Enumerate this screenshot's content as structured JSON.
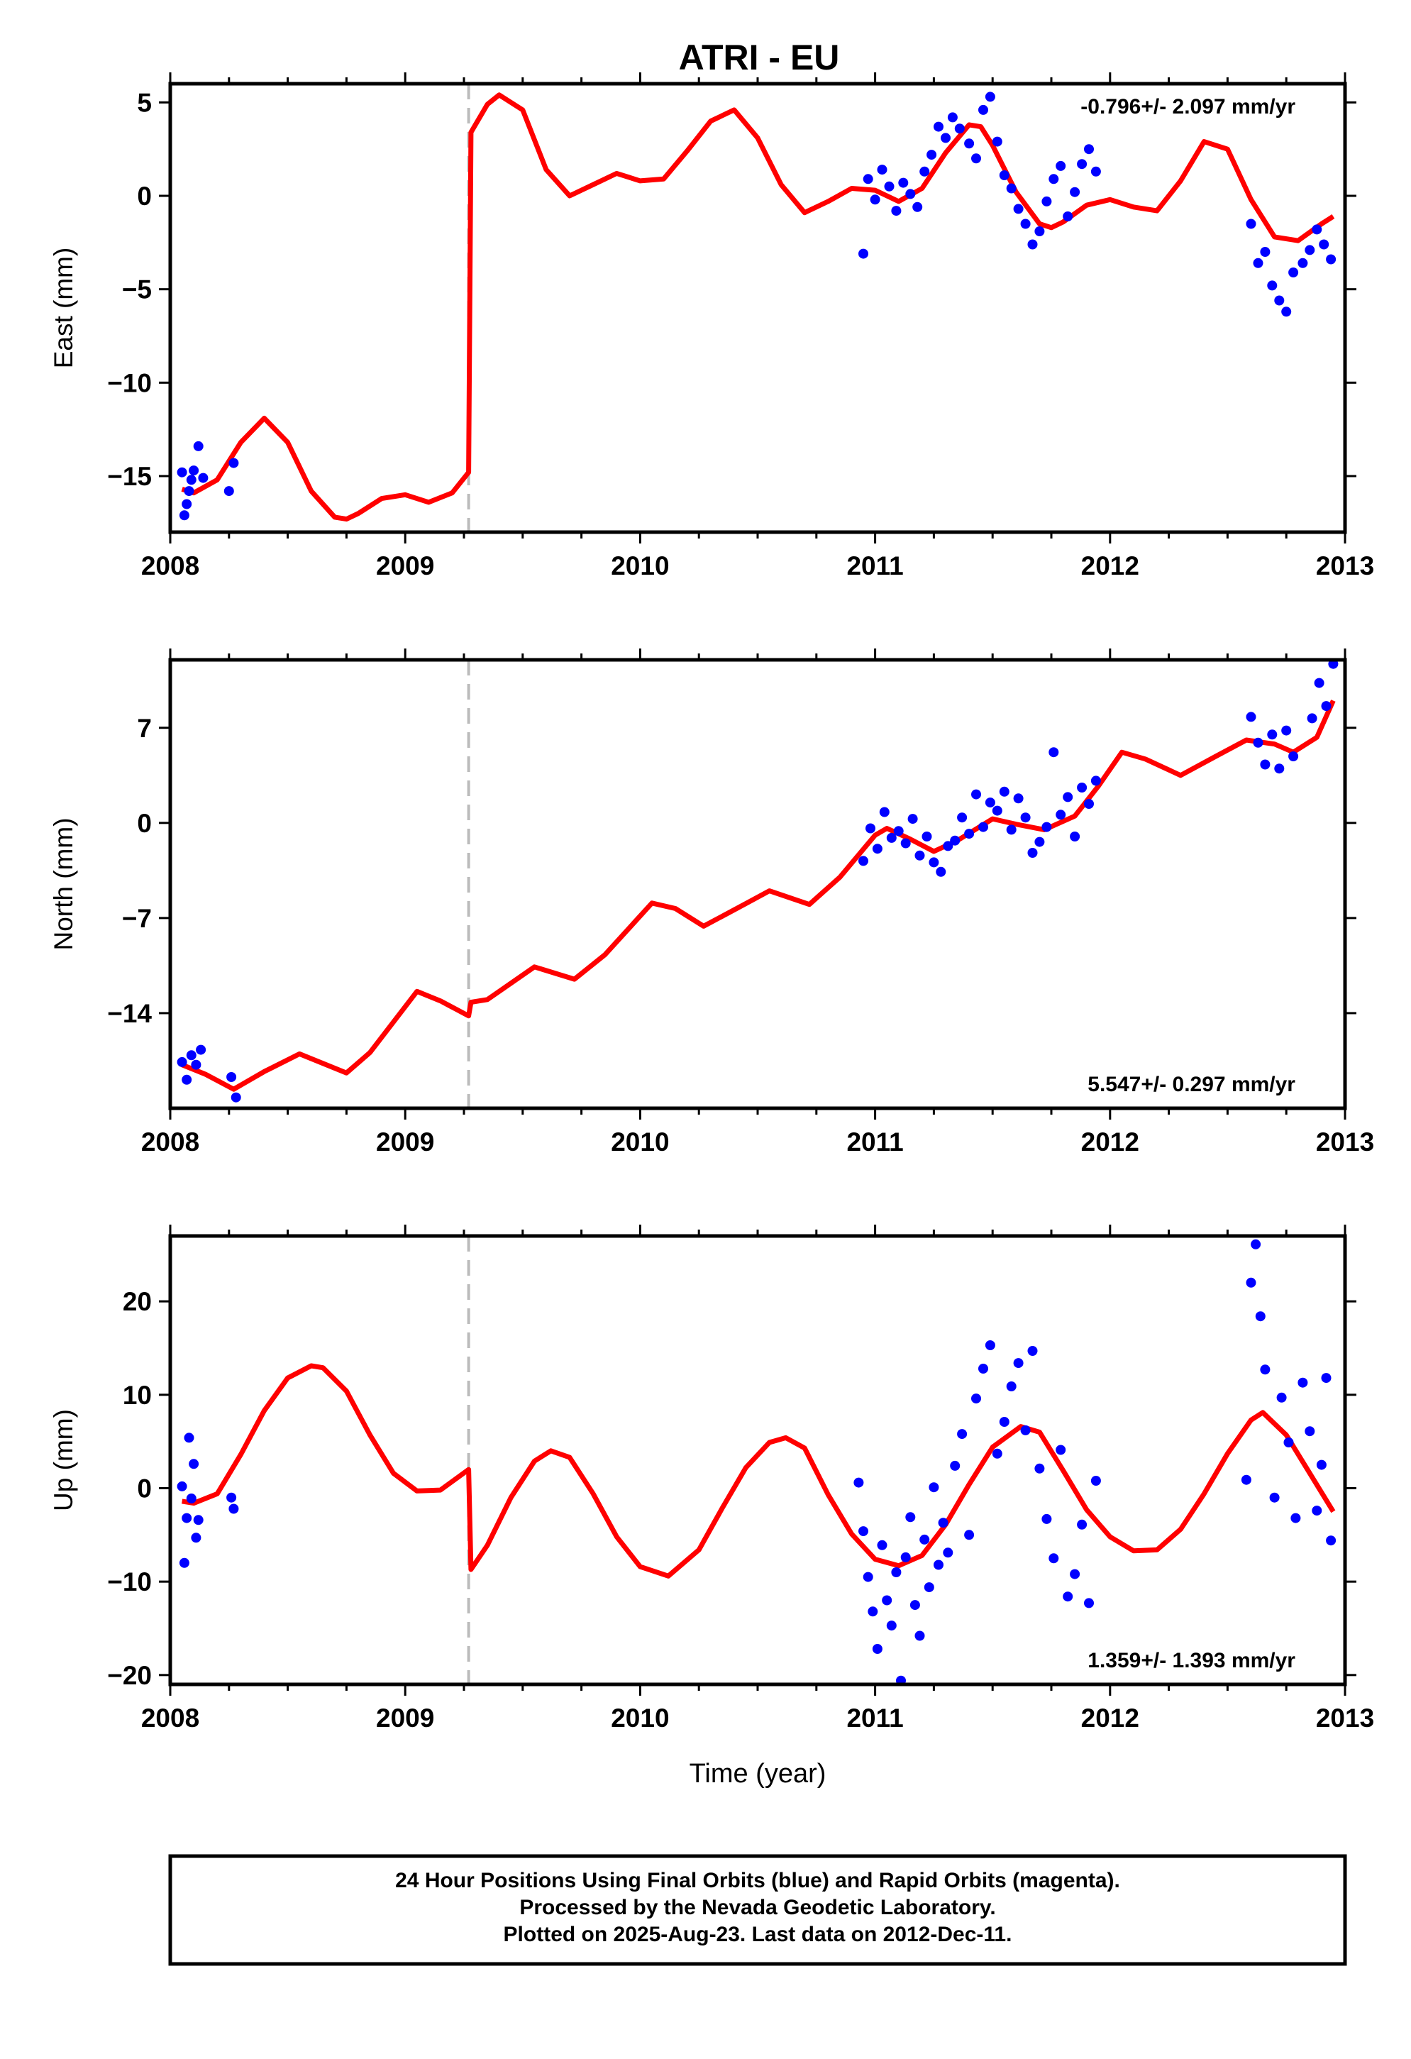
{
  "chart_data": [
    {
      "type": "scatter",
      "title": "ATRI - EU",
      "ylabel": "East (mm)",
      "xlabel": "",
      "xlim": [
        2008,
        2013
      ],
      "ylim": [
        -18,
        6
      ],
      "xticks": [
        "2008",
        "2009",
        "2010",
        "2011",
        "2012",
        "2013"
      ],
      "yticks": [
        "5",
        "0",
        "−5",
        "−10",
        "−15"
      ],
      "ytick_values": [
        5,
        0,
        -5,
        -10,
        -15
      ],
      "rate_label": "-0.796+/- 2.097 mm/yr",
      "break_x": 2009.27,
      "colors": {
        "points": "#0000ff",
        "model": "#ff0000",
        "break": "#bbbbbb"
      },
      "series": [
        {
          "name": "model",
          "kind": "line",
          "x": [
            2008.05,
            2008.1,
            2008.2,
            2008.3,
            2008.4,
            2008.5,
            2008.6,
            2008.7,
            2008.75,
            2008.8,
            2008.9,
            2009.0,
            2009.1,
            2009.2,
            2009.27,
            2009.28,
            2009.35,
            2009.4,
            2009.5,
            2009.6,
            2009.7,
            2009.8,
            2009.9,
            2010.0,
            2010.1,
            2010.2,
            2010.3,
            2010.4,
            2010.5,
            2010.6,
            2010.7,
            2010.8,
            2010.9,
            2011.0,
            2011.1,
            2011.2,
            2011.3,
            2011.4,
            2011.45,
            2011.5,
            2011.6,
            2011.7,
            2011.75,
            2011.8,
            2011.9,
            2012.0,
            2012.1,
            2012.2,
            2012.3,
            2012.4,
            2012.5,
            2012.6,
            2012.7,
            2012.8,
            2012.9,
            2012.95
          ],
          "y": [
            -15.7,
            -15.9,
            -15.2,
            -13.2,
            -11.9,
            -13.2,
            -15.8,
            -17.2,
            -17.3,
            -17.0,
            -16.2,
            -16.0,
            -16.4,
            -15.9,
            -14.8,
            3.4,
            4.9,
            5.4,
            4.6,
            1.4,
            0.0,
            0.6,
            1.2,
            0.8,
            0.9,
            2.4,
            4.0,
            4.6,
            3.1,
            0.6,
            -0.9,
            -0.3,
            0.4,
            0.3,
            -0.3,
            0.4,
            2.3,
            3.8,
            3.7,
            2.7,
            0.2,
            -1.5,
            -1.7,
            -1.4,
            -0.5,
            -0.2,
            -0.6,
            -0.8,
            0.8,
            2.9,
            2.5,
            -0.2,
            -2.2,
            -2.4,
            -1.5,
            -1.1
          ]
        },
        {
          "name": "daily positions",
          "kind": "points",
          "x": [
            2008.05,
            2008.06,
            2008.07,
            2008.08,
            2008.09,
            2008.1,
            2008.12,
            2008.14,
            2008.25,
            2008.27,
            2010.95,
            2010.97,
            2011.0,
            2011.03,
            2011.06,
            2011.09,
            2011.12,
            2011.15,
            2011.18,
            2011.21,
            2011.24,
            2011.27,
            2011.3,
            2011.33,
            2011.36,
            2011.4,
            2011.43,
            2011.46,
            2011.49,
            2011.52,
            2011.55,
            2011.58,
            2011.61,
            2011.64,
            2011.67,
            2011.7,
            2011.73,
            2011.76,
            2011.79,
            2011.82,
            2011.85,
            2011.88,
            2011.91,
            2011.94,
            2012.6,
            2012.63,
            2012.66,
            2012.69,
            2012.72,
            2012.75,
            2012.78,
            2012.82,
            2012.85,
            2012.88,
            2012.91,
            2012.94
          ],
          "y": [
            -14.8,
            -17.1,
            -16.5,
            -15.8,
            -15.2,
            -14.7,
            -13.4,
            -15.1,
            -15.8,
            -14.3,
            -3.1,
            0.9,
            -0.2,
            1.4,
            0.5,
            -0.8,
            0.7,
            0.1,
            -0.6,
            1.3,
            2.2,
            3.7,
            3.1,
            4.2,
            3.6,
            2.8,
            2.0,
            4.6,
            5.3,
            2.9,
            1.1,
            0.4,
            -0.7,
            -1.5,
            -2.6,
            -1.9,
            -0.3,
            0.9,
            1.6,
            -1.1,
            0.2,
            1.7,
            2.5,
            1.3,
            -1.5,
            -3.6,
            -3.0,
            -4.8,
            -5.6,
            -6.2,
            -4.1,
            -3.6,
            -2.9,
            -1.8,
            -2.6,
            -3.4
          ]
        }
      ]
    },
    {
      "type": "scatter",
      "ylabel": "North (mm)",
      "xlabel": "",
      "xlim": [
        2008,
        2013
      ],
      "ylim": [
        -21,
        12
      ],
      "xticks": [
        "2008",
        "2009",
        "2010",
        "2011",
        "2012",
        "2013"
      ],
      "yticks": [
        "7",
        "0",
        "−7",
        "−14"
      ],
      "ytick_values": [
        7,
        0,
        -7,
        -14
      ],
      "rate_label": "5.547+/- 0.297 mm/yr",
      "break_x": 2009.27,
      "colors": {
        "points": "#0000ff",
        "model": "#ff0000",
        "break": "#bbbbbb"
      },
      "series": [
        {
          "name": "model",
          "kind": "line",
          "x": [
            2008.05,
            2008.15,
            2008.27,
            2008.4,
            2008.55,
            2008.75,
            2008.85,
            2009.05,
            2009.15,
            2009.27,
            2009.28,
            2009.35,
            2009.55,
            2009.72,
            2009.85,
            2010.05,
            2010.15,
            2010.27,
            2010.4,
            2010.55,
            2010.72,
            2010.85,
            2011.0,
            2011.05,
            2011.15,
            2011.25,
            2011.35,
            2011.5,
            2011.6,
            2011.72,
            2011.85,
            2011.95,
            2012.05,
            2012.15,
            2012.3,
            2012.45,
            2012.58,
            2012.7,
            2012.78,
            2012.88,
            2012.95
          ],
          "y": [
            -17.8,
            -18.5,
            -19.6,
            -18.3,
            -17.0,
            -18.4,
            -16.9,
            -12.4,
            -13.1,
            -14.2,
            -13.2,
            -13.0,
            -10.6,
            -11.5,
            -9.7,
            -5.9,
            -6.3,
            -7.6,
            -6.4,
            -5.0,
            -6.0,
            -4.0,
            -0.9,
            -0.4,
            -1.2,
            -2.1,
            -1.3,
            0.3,
            -0.1,
            -0.5,
            0.5,
            2.7,
            5.2,
            4.7,
            3.5,
            4.9,
            6.1,
            5.8,
            5.2,
            6.3,
            9.0
          ]
        },
        {
          "name": "daily positions",
          "kind": "points",
          "x": [
            2008.05,
            2008.07,
            2008.09,
            2008.11,
            2008.13,
            2008.26,
            2008.28,
            2010.95,
            2010.98,
            2011.01,
            2011.04,
            2011.07,
            2011.1,
            2011.13,
            2011.16,
            2011.19,
            2011.22,
            2011.25,
            2011.28,
            2011.31,
            2011.34,
            2011.37,
            2011.4,
            2011.43,
            2011.46,
            2011.49,
            2011.52,
            2011.55,
            2011.58,
            2011.61,
            2011.64,
            2011.67,
            2011.7,
            2011.73,
            2011.76,
            2011.79,
            2011.82,
            2011.85,
            2011.88,
            2011.91,
            2011.94,
            2012.6,
            2012.63,
            2012.66,
            2012.69,
            2012.72,
            2012.75,
            2012.78,
            2012.86,
            2012.89,
            2012.92,
            2012.95
          ],
          "y": [
            -17.6,
            -18.9,
            -17.1,
            -17.8,
            -16.7,
            -18.7,
            -20.2,
            -2.8,
            -0.4,
            -1.9,
            0.8,
            -1.1,
            -0.6,
            -1.5,
            0.3,
            -2.4,
            -1.0,
            -2.9,
            -3.6,
            -1.7,
            -1.3,
            0.4,
            -0.8,
            2.1,
            -0.3,
            1.5,
            0.9,
            2.3,
            -0.5,
            1.8,
            0.4,
            -2.2,
            -1.4,
            -0.3,
            5.2,
            0.6,
            1.9,
            -1.0,
            2.6,
            1.4,
            3.1,
            7.8,
            5.9,
            4.3,
            6.5,
            4.0,
            6.8,
            4.9,
            7.7,
            10.3,
            8.6,
            11.7
          ]
        }
      ]
    },
    {
      "type": "scatter",
      "ylabel": "Up (mm)",
      "xlabel": "Time (year)",
      "xlim": [
        2008,
        2013
      ],
      "ylim": [
        -21,
        27
      ],
      "xticks": [
        "2008",
        "2009",
        "2010",
        "2011",
        "2012",
        "2013"
      ],
      "yticks": [
        "20",
        "10",
        "0",
        "−10",
        "−20"
      ],
      "ytick_values": [
        20,
        10,
        0,
        -10,
        -20
      ],
      "rate_label": "1.359+/- 1.393 mm/yr",
      "break_x": 2009.27,
      "colors": {
        "points": "#0000ff",
        "model": "#ff0000",
        "break": "#bbbbbb"
      },
      "series": [
        {
          "name": "model",
          "kind": "line",
          "x": [
            2008.05,
            2008.1,
            2008.2,
            2008.3,
            2008.4,
            2008.5,
            2008.6,
            2008.65,
            2008.75,
            2008.85,
            2008.95,
            2009.05,
            2009.15,
            2009.27,
            2009.28,
            2009.35,
            2009.45,
            2009.55,
            2009.62,
            2009.7,
            2009.8,
            2009.9,
            2010.0,
            2010.12,
            2010.25,
            2010.35,
            2010.45,
            2010.55,
            2010.62,
            2010.7,
            2010.8,
            2010.9,
            2011.0,
            2011.1,
            2011.2,
            2011.3,
            2011.4,
            2011.5,
            2011.62,
            2011.7,
            2011.8,
            2011.9,
            2012.0,
            2012.1,
            2012.2,
            2012.3,
            2012.4,
            2012.5,
            2012.6,
            2012.65,
            2012.75,
            2012.85,
            2012.95
          ],
          "y": [
            -1.4,
            -1.6,
            -0.6,
            3.6,
            8.3,
            11.8,
            13.1,
            12.9,
            10.4,
            5.7,
            1.6,
            -0.3,
            -0.2,
            2.0,
            -8.7,
            -6.1,
            -1.0,
            2.9,
            4.0,
            3.3,
            -0.6,
            -5.2,
            -8.4,
            -9.4,
            -6.6,
            -2.1,
            2.2,
            4.9,
            5.4,
            4.3,
            -0.7,
            -4.9,
            -7.6,
            -8.3,
            -7.2,
            -3.9,
            0.4,
            4.4,
            6.6,
            6.0,
            1.9,
            -2.3,
            -5.2,
            -6.7,
            -6.6,
            -4.4,
            -0.6,
            3.7,
            7.3,
            8.1,
            5.7,
            1.6,
            -2.5
          ]
        },
        {
          "name": "daily positions",
          "kind": "points",
          "x": [
            2008.05,
            2008.06,
            2008.07,
            2008.08,
            2008.09,
            2008.1,
            2008.11,
            2008.12,
            2008.26,
            2008.27,
            2010.93,
            2010.95,
            2010.97,
            2010.99,
            2011.01,
            2011.03,
            2011.05,
            2011.07,
            2011.09,
            2011.11,
            2011.13,
            2011.15,
            2011.17,
            2011.19,
            2011.21,
            2011.23,
            2011.25,
            2011.27,
            2011.29,
            2011.31,
            2011.34,
            2011.37,
            2011.4,
            2011.43,
            2011.46,
            2011.49,
            2011.52,
            2011.55,
            2011.58,
            2011.61,
            2011.64,
            2011.67,
            2011.7,
            2011.73,
            2011.76,
            2011.79,
            2011.82,
            2011.85,
            2011.88,
            2011.91,
            2011.94,
            2012.58,
            2012.6,
            2012.62,
            2012.64,
            2012.66,
            2012.7,
            2012.73,
            2012.76,
            2012.79,
            2012.82,
            2012.85,
            2012.88,
            2012.9,
            2012.92,
            2012.94
          ],
          "y": [
            0.2,
            -8.0,
            -3.2,
            5.4,
            -1.1,
            2.6,
            -5.3,
            -3.4,
            -1.0,
            -2.2,
            0.6,
            -4.6,
            -9.5,
            -13.2,
            -17.2,
            -6.1,
            -12.0,
            -14.7,
            -9.0,
            -20.6,
            -7.4,
            -3.1,
            -12.5,
            -15.8,
            -5.5,
            -10.6,
            0.1,
            -8.2,
            -3.7,
            -6.9,
            2.4,
            5.8,
            -5.0,
            9.6,
            12.8,
            15.3,
            3.7,
            7.1,
            10.9,
            13.4,
            6.2,
            14.7,
            2.1,
            -3.3,
            -7.5,
            4.1,
            -11.6,
            -9.2,
            -3.9,
            -12.3,
            0.8,
            0.9,
            22.0,
            26.1,
            18.4,
            12.7,
            -1.0,
            9.7,
            4.9,
            -3.2,
            11.3,
            6.1,
            -2.4,
            2.5,
            11.8,
            -5.6
          ]
        }
      ]
    }
  ],
  "footer": {
    "line1": "24 Hour Positions Using Final Orbits (blue) and Rapid Orbits (magenta).",
    "line2": "Processed by the Nevada Geodetic Laboratory.",
    "line3": "Plotted on 2025-Aug-23. Last data on 2012-Dec-11."
  }
}
